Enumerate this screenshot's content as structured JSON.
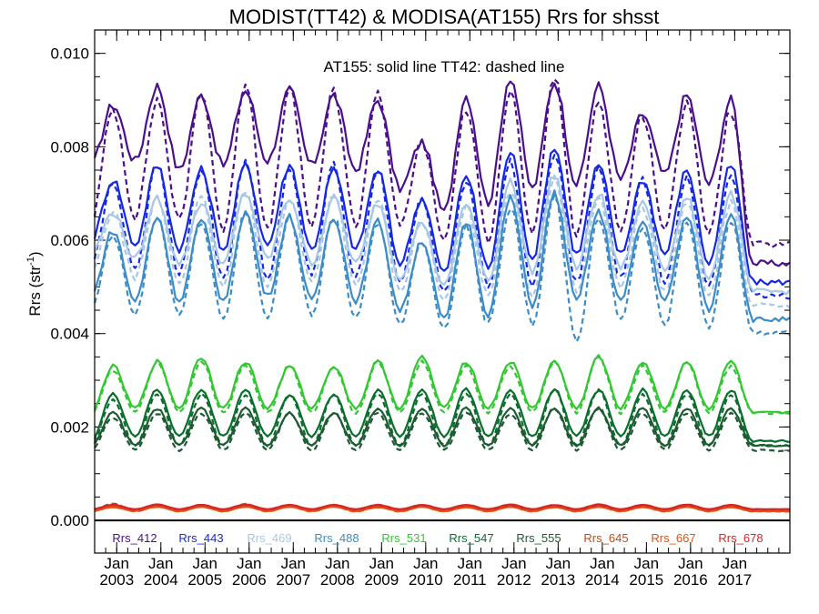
{
  "chart_data": {
    "type": "line",
    "title": "MODIST(TT42) & MODISA(AT155)  Rrs for shsst",
    "ylabel": "Rrs (str⁻¹)",
    "ylabel_main": "Rrs (str",
    "ylabel_sup": "-1",
    "ylabel_close": ")",
    "annotation": "AT155: solid line   TT42: dashed line",
    "xlim": [
      "2002-07",
      "2018-04"
    ],
    "ylim": [
      -0.0007,
      0.0105
    ],
    "yticks": [
      "0.000",
      "0.002",
      "0.004",
      "0.006",
      "0.008",
      "0.010"
    ],
    "ytick_values": [
      0.0,
      0.002,
      0.004,
      0.006,
      0.008,
      0.01
    ],
    "xticks": [
      {
        "month": "Jan",
        "year": "2003"
      },
      {
        "month": "Jan",
        "year": "2004"
      },
      {
        "month": "Jan",
        "year": "2005"
      },
      {
        "month": "Jan",
        "year": "2006"
      },
      {
        "month": "Jan",
        "year": "2007"
      },
      {
        "month": "Jan",
        "year": "2008"
      },
      {
        "month": "Jan",
        "year": "2009"
      },
      {
        "month": "Jan",
        "year": "2010"
      },
      {
        "month": "Jan",
        "year": "2011"
      },
      {
        "month": "Jan",
        "year": "2012"
      },
      {
        "month": "Jan",
        "year": "2013"
      },
      {
        "month": "Jan",
        "year": "2014"
      },
      {
        "month": "Jan",
        "year": "2015"
      },
      {
        "month": "Jan",
        "year": "2016"
      },
      {
        "month": "Jan",
        "year": "2017"
      }
    ],
    "legend_position": "bottom",
    "zero_line": true,
    "series": [
      {
        "name": "Rrs_412",
        "color": "#4b0f8c",
        "AT155": {
          "x_start": "2002-07",
          "peak_months": [
            "2002-12",
            "2003-12",
            "2004-12",
            "2005-12",
            "2006-12",
            "2007-12",
            "2008-12",
            "2009-12",
            "2010-12",
            "2011-12",
            "2012-12",
            "2013-12",
            "2014-12",
            "2015-12",
            "2016-12"
          ],
          "peaks": [
            0.0089,
            0.0093,
            0.0091,
            0.0092,
            0.0092,
            0.0091,
            0.009,
            0.0081,
            0.0091,
            0.0095,
            0.0094,
            0.0093,
            0.0087,
            0.0091,
            0.009
          ],
          "troughs": [
            0.0076,
            0.0077,
            0.0075,
            0.0076,
            0.0077,
            0.0076,
            0.0075,
            0.0071,
            0.0066,
            0.0068,
            0.0071,
            0.0072,
            0.0073,
            0.0074,
            0.0072,
            0.0055
          ]
        },
        "TT42": {
          "x_start": "2002-07",
          "peak_months": [
            "2002-12",
            "2003-12",
            "2004-12",
            "2005-12",
            "2006-12",
            "2007-12",
            "2008-12",
            "2009-12",
            "2010-12",
            "2011-12",
            "2012-12",
            "2013-12",
            "2014-12",
            "2015-12",
            "2016-12"
          ],
          "peaks": [
            0.0088,
            0.009,
            0.0092,
            0.0094,
            0.0092,
            0.0092,
            0.0092,
            0.0081,
            0.0088,
            0.0092,
            0.0095,
            0.009,
            0.0087,
            0.009,
            0.0088
          ],
          "troughs": [
            0.0064,
            0.0065,
            0.0064,
            0.0062,
            0.0062,
            0.0063,
            0.0063,
            0.0063,
            0.006,
            0.006,
            0.0061,
            0.0061,
            0.0062,
            0.0062,
            0.0061,
            0.0059
          ]
        }
      },
      {
        "name": "Rrs_443",
        "color": "#1428e6",
        "AT155": {
          "peaks": [
            0.0073,
            0.0076,
            0.0075,
            0.0076,
            0.0076,
            0.0075,
            0.0075,
            0.0069,
            0.0074,
            0.0079,
            0.008,
            0.0076,
            0.0073,
            0.0075,
            0.0076
          ],
          "troughs": [
            0.006,
            0.0059,
            0.0058,
            0.0058,
            0.0059,
            0.0058,
            0.0058,
            0.0055,
            0.0053,
            0.0054,
            0.0056,
            0.0057,
            0.0057,
            0.0057,
            0.0055,
            0.0051
          ]
        },
        "TT42": {
          "peaks": [
            0.0072,
            0.0076,
            0.0075,
            0.0077,
            0.0075,
            0.0076,
            0.0075,
            0.0069,
            0.0073,
            0.0077,
            0.0079,
            0.0075,
            0.0073,
            0.0074,
            0.0074
          ],
          "troughs": [
            0.0055,
            0.0054,
            0.0053,
            0.0052,
            0.0052,
            0.0053,
            0.0052,
            0.0051,
            0.0049,
            0.005,
            0.005,
            0.0051,
            0.0052,
            0.0051,
            0.005,
            0.0048
          ]
        }
      },
      {
        "name": "Rrs_469",
        "color": "#a6c8e6",
        "AT155": {
          "peaks": [
            0.0066,
            0.0069,
            0.0068,
            0.007,
            0.0069,
            0.0069,
            0.0068,
            0.0064,
            0.0068,
            0.0073,
            0.0074,
            0.007,
            0.0068,
            0.0069,
            0.007
          ],
          "troughs": [
            0.0057,
            0.0056,
            0.0055,
            0.0055,
            0.0056,
            0.0055,
            0.0055,
            0.0052,
            0.005,
            0.0051,
            0.0053,
            0.0054,
            0.0054,
            0.0054,
            0.0052,
            0.0049
          ]
        },
        "TT42": {
          "peaks": [
            0.0066,
            0.0069,
            0.0069,
            0.0071,
            0.0069,
            0.007,
            0.0069,
            0.0064,
            0.0067,
            0.0071,
            0.0073,
            0.0069,
            0.0067,
            0.0068,
            0.0068
          ],
          "troughs": [
            0.0053,
            0.0052,
            0.0051,
            0.005,
            0.005,
            0.0051,
            0.005,
            0.0049,
            0.0047,
            0.0048,
            0.0048,
            0.0049,
            0.005,
            0.0049,
            0.0048,
            0.0046
          ]
        }
      },
      {
        "name": "Rrs_488",
        "color": "#3c8cc8",
        "AT155": {
          "peaks": [
            0.0062,
            0.0065,
            0.0064,
            0.0066,
            0.0065,
            0.0065,
            0.0064,
            0.006,
            0.0064,
            0.0069,
            0.007,
            0.0066,
            0.0064,
            0.0065,
            0.0066
          ],
          "troughs": [
            0.0048,
            0.0047,
            0.0047,
            0.0047,
            0.0048,
            0.0047,
            0.0047,
            0.0045,
            0.0043,
            0.0044,
            0.0046,
            0.0047,
            0.0047,
            0.0047,
            0.0045,
            0.0043
          ]
        },
        "TT42": {
          "peaks": [
            0.0061,
            0.0065,
            0.0064,
            0.0066,
            0.0065,
            0.0065,
            0.0064,
            0.006,
            0.0063,
            0.0067,
            0.0069,
            0.0065,
            0.0063,
            0.0064,
            0.0064
          ],
          "troughs": [
            0.0045,
            0.0044,
            0.0044,
            0.0043,
            0.0043,
            0.0044,
            0.0043,
            0.0042,
            0.0041,
            0.0042,
            0.0042,
            0.0038,
            0.0043,
            0.0042,
            0.0041,
            0.004
          ]
        }
      },
      {
        "name": "Rrs_531",
        "color": "#32c832",
        "AT155": {
          "peaks": [
            0.0033,
            0.0034,
            0.0035,
            0.0034,
            0.0033,
            0.0033,
            0.0034,
            0.0035,
            0.0034,
            0.0034,
            0.0034,
            0.0035,
            0.0034,
            0.0034,
            0.0034
          ],
          "troughs": [
            0.0023,
            0.0024,
            0.0024,
            0.0024,
            0.0024,
            0.0024,
            0.0024,
            0.0024,
            0.0024,
            0.0024,
            0.0024,
            0.0024,
            0.0024,
            0.0024,
            0.0024,
            0.0023
          ]
        },
        "TT42": {
          "peaks": [
            0.0032,
            0.0034,
            0.0034,
            0.0033,
            0.0033,
            0.0033,
            0.0034,
            0.0034,
            0.0033,
            0.0033,
            0.0034,
            0.0035,
            0.0033,
            0.0034,
            0.0033
          ],
          "troughs": [
            0.0023,
            0.0023,
            0.0023,
            0.0023,
            0.0023,
            0.0023,
            0.0023,
            0.0023,
            0.0023,
            0.0023,
            0.0023,
            0.0023,
            0.0023,
            0.0023,
            0.0023,
            0.0023
          ]
        }
      },
      {
        "name": "Rrs_547",
        "color": "#0a6e2d",
        "AT155": {
          "peaks": [
            0.0027,
            0.0028,
            0.0028,
            0.0028,
            0.0027,
            0.0027,
            0.0028,
            0.0028,
            0.0028,
            0.0028,
            0.0028,
            0.0028,
            0.0028,
            0.0028,
            0.0028
          ],
          "troughs": [
            0.0017,
            0.0018,
            0.0018,
            0.0018,
            0.0018,
            0.0018,
            0.0018,
            0.0018,
            0.0018,
            0.0018,
            0.0018,
            0.0018,
            0.0018,
            0.0018,
            0.0018,
            0.0017
          ]
        },
        "TT42": {
          "peaks": [
            0.0026,
            0.0027,
            0.0027,
            0.0027,
            0.0027,
            0.0027,
            0.0027,
            0.0027,
            0.0027,
            0.0027,
            0.0028,
            0.0028,
            0.0027,
            0.0027,
            0.0027
          ],
          "troughs": [
            0.0016,
            0.0016,
            0.0016,
            0.0016,
            0.0016,
            0.0016,
            0.0016,
            0.0016,
            0.0016,
            0.0016,
            0.0016,
            0.0016,
            0.0016,
            0.0016,
            0.0016,
            0.0016
          ]
        }
      },
      {
        "name": "Rrs_555",
        "color": "#1e5a32",
        "AT155": {
          "peaks": [
            0.0023,
            0.0024,
            0.0024,
            0.0024,
            0.0023,
            0.0023,
            0.0024,
            0.0024,
            0.0024,
            0.0024,
            0.0024,
            0.0024,
            0.0024,
            0.0024,
            0.0024
          ],
          "troughs": [
            0.0016,
            0.0016,
            0.0016,
            0.0016,
            0.0016,
            0.0016,
            0.0016,
            0.0016,
            0.0016,
            0.0016,
            0.0016,
            0.0016,
            0.0016,
            0.0016,
            0.0016,
            0.0016
          ]
        },
        "TT42": {
          "peaks": [
            0.0022,
            0.0023,
            0.0023,
            0.0023,
            0.0023,
            0.0023,
            0.0023,
            0.0023,
            0.0023,
            0.0023,
            0.0024,
            0.0024,
            0.0023,
            0.0023,
            0.0023
          ],
          "troughs": [
            0.0015,
            0.0015,
            0.0015,
            0.0015,
            0.0015,
            0.0015,
            0.0015,
            0.0015,
            0.0015,
            0.0015,
            0.0015,
            0.0015,
            0.0015,
            0.0015,
            0.0015,
            0.0015
          ]
        }
      },
      {
        "name": "Rrs_645",
        "color": "#b4501e",
        "AT155": {
          "peaks": [
            0.0003,
            0.00032,
            0.00031,
            0.00032,
            0.00031,
            0.00031,
            0.0003,
            0.00031,
            0.0003,
            0.00031,
            0.0003,
            0.00031,
            0.0003,
            0.00031,
            0.0003
          ],
          "troughs": [
            0.00022,
            0.00022,
            0.00022,
            0.00022,
            0.00022,
            0.00022,
            0.00022,
            0.00022,
            0.00022,
            0.00022,
            0.00022,
            0.00022,
            0.00022,
            0.00022,
            0.00022,
            0.00022
          ]
        },
        "TT42": {
          "peaks": [
            0.00036,
            0.00034,
            0.00033,
            0.00035,
            0.00033,
            0.00032,
            0.00031,
            0.0003,
            0.00031,
            0.0003,
            0.00031,
            0.0003,
            0.00031,
            0.0003,
            0.00031
          ],
          "troughs": [
            0.0002,
            0.0002,
            0.0002,
            0.0002,
            0.0002,
            0.0002,
            0.0002,
            0.0002,
            0.0002,
            0.0002,
            0.0002,
            0.0002,
            0.0002,
            0.0002,
            0.0002,
            0.0002
          ]
        }
      },
      {
        "name": "Rrs_667",
        "color": "#e65014",
        "AT155": {
          "peaks": [
            0.00028,
            0.00029,
            0.00029,
            0.00029,
            0.00029,
            0.00029,
            0.00028,
            0.00029,
            0.00028,
            0.00029,
            0.00028,
            0.00029,
            0.00028,
            0.00029,
            0.00028
          ],
          "troughs": [
            0.0002,
            0.0002,
            0.0002,
            0.0002,
            0.0002,
            0.0002,
            0.0002,
            0.0002,
            0.0002,
            0.0002,
            0.0002,
            0.0002,
            0.0002,
            0.0002,
            0.0002,
            0.0002
          ]
        },
        "TT42": {
          "peaks": [
            0.00031,
            0.0003,
            0.0003,
            0.00031,
            0.0003,
            0.0003,
            0.00029,
            0.00029,
            0.00029,
            0.00029,
            0.00029,
            0.00029,
            0.00029,
            0.00029,
            0.00029
          ],
          "troughs": [
            0.00019,
            0.00019,
            0.00019,
            0.00019,
            0.00019,
            0.00019,
            0.00019,
            0.00019,
            0.00019,
            0.00019,
            0.00019,
            0.00019,
            0.00019,
            0.00019,
            0.00019,
            0.00019
          ]
        }
      },
      {
        "name": "Rrs_678",
        "color": "#d22828",
        "AT155": {
          "peaks": [
            0.00033,
            0.00034,
            0.00033,
            0.00034,
            0.00033,
            0.00033,
            0.00033,
            0.00033,
            0.00033,
            0.00034,
            0.00033,
            0.00034,
            0.00033,
            0.00034,
            0.00033
          ],
          "troughs": [
            0.00024,
            0.00024,
            0.00024,
            0.00024,
            0.00024,
            0.00024,
            0.00024,
            0.00024,
            0.00024,
            0.00024,
            0.00024,
            0.00024,
            0.00024,
            0.00024,
            0.00024,
            0.00024
          ]
        },
        "TT42": {
          "peaks": [
            0.00034,
            0.00033,
            0.00033,
            0.00033,
            0.00033,
            0.00033,
            0.00032,
            0.00032,
            0.00032,
            0.00032,
            0.00032,
            0.00032,
            0.00032,
            0.00032,
            0.00032
          ],
          "troughs": [
            0.00023,
            0.00023,
            0.00023,
            0.00023,
            0.00023,
            0.00023,
            0.00023,
            0.00023,
            0.00023,
            0.00023,
            0.00023,
            0.00023,
            0.00023,
            0.00023,
            0.00023,
            0.00023
          ]
        }
      }
    ]
  }
}
